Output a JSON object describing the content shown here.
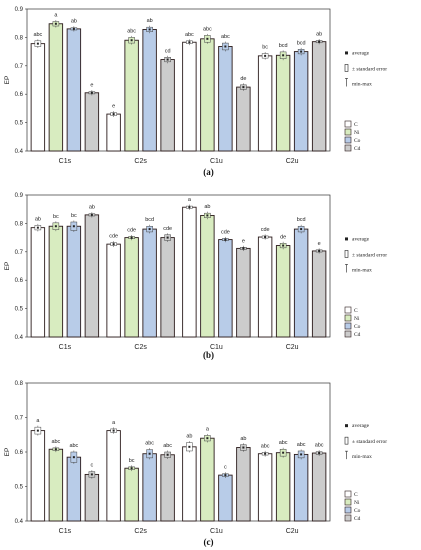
{
  "colors": {
    "C": "#ffffff",
    "Ni": "#d8ecc0",
    "Co": "#b8cce8",
    "Cd": "#cccccc",
    "C_edge": "#2a1a1a"
  },
  "legend": {
    "average": "average",
    "se": "± standard error",
    "minmax": "min-max",
    "species": [
      "C",
      "Ni",
      "Co",
      "Cd"
    ]
  },
  "chart_data": [
    {
      "type": "bar",
      "caption": "(a)",
      "ylabel": "EP",
      "ylim": [
        0.4,
        0.9
      ],
      "yticks": [
        "0.4",
        "0.5",
        "0.6",
        "0.7",
        "0.8",
        "0.9"
      ],
      "categories": [
        "C1s",
        "C2s",
        "C1u",
        "C2u"
      ],
      "series": [
        {
          "name": "C",
          "values": [
            0.778,
            0.53,
            0.783,
            0.735
          ],
          "err": [
            0.01,
            0.005,
            0.005,
            0.008
          ],
          "letters": [
            "abc",
            "e",
            "abc",
            "bc"
          ]
        },
        {
          "name": "Ni",
          "values": [
            0.848,
            0.79,
            0.795,
            0.737
          ],
          "err": [
            0.008,
            0.01,
            0.012,
            0.012
          ],
          "letters": [
            "a",
            "abc",
            "abc",
            "bcd"
          ]
        },
        {
          "name": "Co",
          "values": [
            0.83,
            0.828,
            0.768,
            0.75
          ],
          "err": [
            0.004,
            0.008,
            0.012,
            0.008
          ],
          "letters": [
            "ab",
            "ab",
            "abc",
            "bcd"
          ]
        },
        {
          "name": "Cd",
          "values": [
            0.605,
            0.722,
            0.625,
            0.785
          ],
          "err": [
            0.004,
            0.008,
            0.008,
            0.004
          ],
          "letters": [
            "e",
            "cd",
            "de",
            "ab"
          ]
        }
      ]
    },
    {
      "type": "bar",
      "caption": "(b)",
      "ylabel": "EP",
      "ylim": [
        0.4,
        0.9
      ],
      "yticks": [
        "0.4",
        "0.5",
        "0.6",
        "0.7",
        "0.8",
        "0.9"
      ],
      "categories": [
        "C1s",
        "C2s",
        "C1u",
        "C2u"
      ],
      "series": [
        {
          "name": "C",
          "values": [
            0.785,
            0.727,
            0.857,
            0.752
          ],
          "err": [
            0.008,
            0.005,
            0.004,
            0.004
          ],
          "letters": [
            "ab",
            "cde",
            "a",
            "cde"
          ]
        },
        {
          "name": "Ni",
          "values": [
            0.79,
            0.75,
            0.828,
            0.722
          ],
          "err": [
            0.012,
            0.004,
            0.008,
            0.008
          ],
          "letters": [
            "bc",
            "cde",
            "ab",
            "de"
          ]
        },
        {
          "name": "Co",
          "values": [
            0.79,
            0.78,
            0.743,
            0.78
          ],
          "err": [
            0.015,
            0.01,
            0.004,
            0.01
          ],
          "letters": [
            "bc",
            "bcd",
            "cde",
            "bcd"
          ]
        },
        {
          "name": "Cd",
          "values": [
            0.83,
            0.75,
            0.712,
            0.703
          ],
          "err": [
            0.004,
            0.01,
            0.004,
            0.004
          ],
          "letters": [
            "ab",
            "cde",
            "e",
            "e"
          ]
        }
      ]
    },
    {
      "type": "bar",
      "caption": "(c)",
      "ylabel": "EP",
      "ylim": [
        0.4,
        0.8
      ],
      "yticks": [
        "0.4",
        "0.5",
        "0.6",
        "0.7",
        "0.8"
      ],
      "categories": [
        "C1s",
        "C2s",
        "C1u",
        "C2u"
      ],
      "series": [
        {
          "name": "C",
          "values": [
            0.662,
            0.662,
            0.615,
            0.595
          ],
          "err": [
            0.01,
            0.005,
            0.012,
            0.004
          ],
          "letters": [
            "a",
            "a",
            "ab",
            "abc"
          ]
        },
        {
          "name": "Ni",
          "values": [
            0.608,
            0.553,
            0.64,
            0.598
          ],
          "err": [
            0.004,
            0.004,
            0.008,
            0.01
          ],
          "letters": [
            "abc",
            "bc",
            "a",
            "abc"
          ]
        },
        {
          "name": "Co",
          "values": [
            0.585,
            0.595,
            0.533,
            0.593
          ],
          "err": [
            0.015,
            0.012,
            0.004,
            0.01
          ],
          "letters": [
            "abc",
            "abc",
            "c",
            "abc"
          ]
        },
        {
          "name": "Cd",
          "values": [
            0.535,
            0.592,
            0.613,
            0.597
          ],
          "err": [
            0.008,
            0.008,
            0.008,
            0.004
          ],
          "letters": [
            "c",
            "abc",
            "ab",
            "abc"
          ]
        }
      ]
    }
  ]
}
